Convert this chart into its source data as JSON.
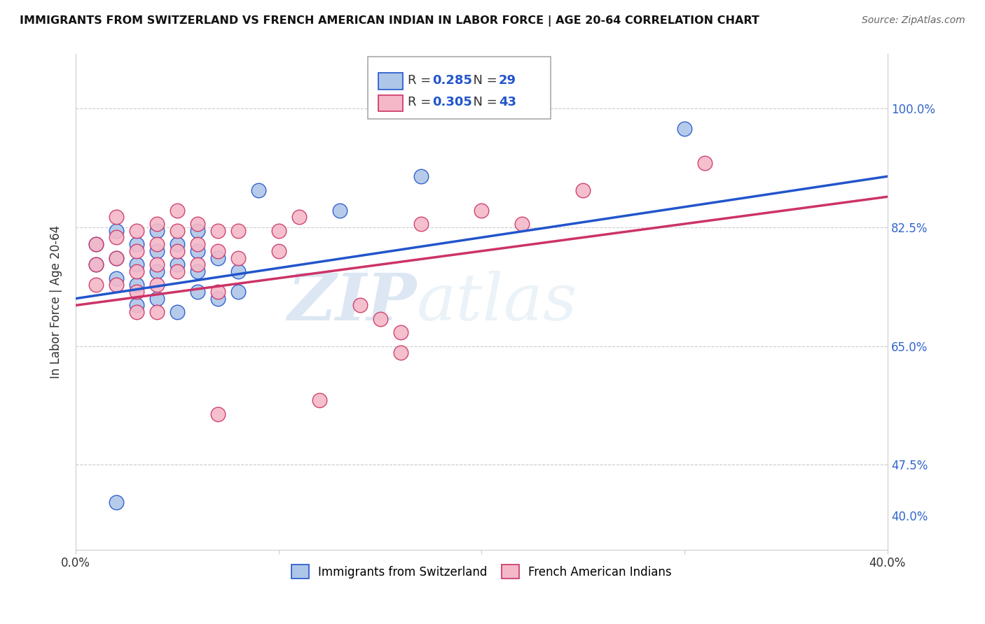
{
  "title": "IMMIGRANTS FROM SWITZERLAND VS FRENCH AMERICAN INDIAN IN LABOR FORCE | AGE 20-64 CORRELATION CHART",
  "source": "Source: ZipAtlas.com",
  "ylabel": "In Labor Force | Age 20-64",
  "xlim": [
    0.0,
    0.4
  ],
  "ylim": [
    0.35,
    1.08
  ],
  "r_blue_val": "0.285",
  "n_blue_val": "29",
  "r_pink_val": "0.305",
  "n_pink_val": "43",
  "blue_color": "#aec6e8",
  "pink_color": "#f4b8c8",
  "blue_line_color": "#2255cc",
  "pink_line_color": "#cc3366",
  "watermark_zip": "ZIP",
  "watermark_atlas": "atlas",
  "blue_scatter_x": [
    0.01,
    0.01,
    0.02,
    0.02,
    0.02,
    0.03,
    0.03,
    0.03,
    0.03,
    0.04,
    0.04,
    0.04,
    0.04,
    0.05,
    0.05,
    0.05,
    0.06,
    0.06,
    0.06,
    0.06,
    0.07,
    0.07,
    0.08,
    0.08,
    0.09,
    0.13,
    0.17,
    0.3,
    0.02
  ],
  "blue_scatter_y": [
    0.77,
    0.8,
    0.78,
    0.82,
    0.75,
    0.8,
    0.77,
    0.74,
    0.71,
    0.82,
    0.79,
    0.76,
    0.72,
    0.8,
    0.77,
    0.7,
    0.82,
    0.79,
    0.76,
    0.73,
    0.78,
    0.72,
    0.76,
    0.73,
    0.88,
    0.85,
    0.9,
    0.97,
    0.42
  ],
  "pink_scatter_x": [
    0.01,
    0.01,
    0.01,
    0.02,
    0.02,
    0.02,
    0.02,
    0.03,
    0.03,
    0.03,
    0.03,
    0.03,
    0.04,
    0.04,
    0.04,
    0.04,
    0.04,
    0.05,
    0.05,
    0.05,
    0.05,
    0.06,
    0.06,
    0.06,
    0.07,
    0.07,
    0.07,
    0.08,
    0.08,
    0.1,
    0.1,
    0.11,
    0.14,
    0.15,
    0.16,
    0.16,
    0.17,
    0.2,
    0.22,
    0.25,
    0.31,
    0.07,
    0.12
  ],
  "pink_scatter_y": [
    0.8,
    0.77,
    0.74,
    0.84,
    0.81,
    0.78,
    0.74,
    0.82,
    0.79,
    0.76,
    0.73,
    0.7,
    0.83,
    0.8,
    0.77,
    0.74,
    0.7,
    0.85,
    0.82,
    0.79,
    0.76,
    0.83,
    0.8,
    0.77,
    0.82,
    0.79,
    0.73,
    0.82,
    0.78,
    0.82,
    0.79,
    0.84,
    0.71,
    0.69,
    0.67,
    0.64,
    0.83,
    0.85,
    0.83,
    0.88,
    0.92,
    0.55,
    0.57
  ],
  "trend_blue_x0": 0.0,
  "trend_blue_y0": 0.72,
  "trend_blue_x1": 0.4,
  "trend_blue_y1": 0.9,
  "trend_pink_x0": 0.0,
  "trend_pink_y0": 0.71,
  "trend_pink_x1": 0.4,
  "trend_pink_y1": 0.87
}
